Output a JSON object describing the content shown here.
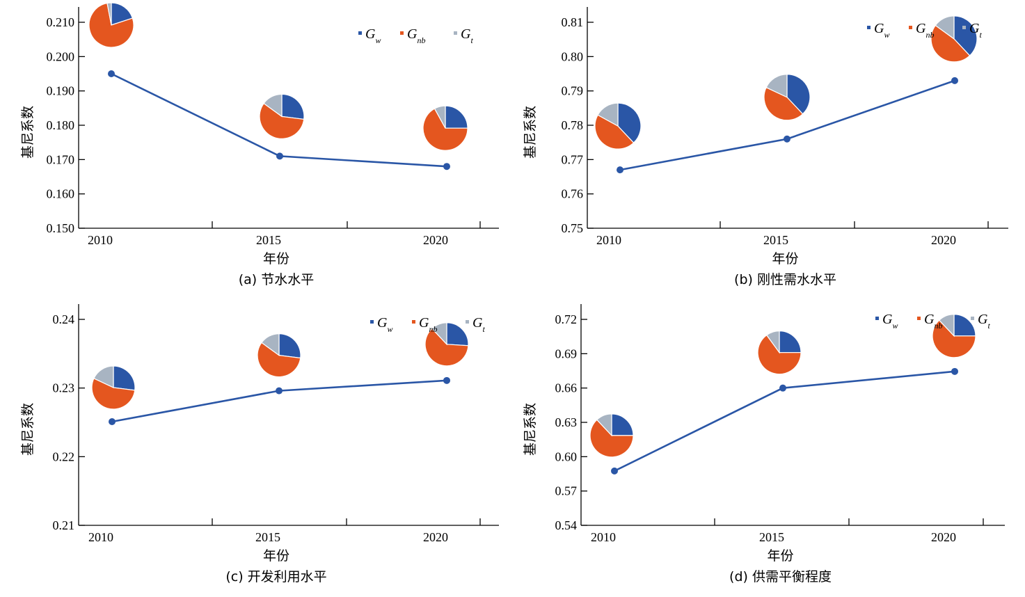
{
  "colors": {
    "Gw": "#2a56a6",
    "Gnb": "#e4561f",
    "Gt": "#a8b4c2",
    "line": "#2a56a6",
    "axis": "#000000"
  },
  "legend": [
    {
      "key": "Gw",
      "base": "G",
      "sub": "w"
    },
    {
      "key": "Gnb",
      "base": "G",
      "sub": "nb"
    },
    {
      "key": "Gt",
      "base": "G",
      "sub": "t"
    }
  ],
  "chart_data": [
    {
      "type": "line",
      "id": "a",
      "title": "(a) 节水水平",
      "xlabel": "年份",
      "ylabel": "基尼系数",
      "categories": [
        "2010",
        "2015",
        "2020"
      ],
      "yticks": [
        "0.150",
        "0.160",
        "0.170",
        "0.180",
        "0.190",
        "0.200",
        "0.210"
      ],
      "ylim": [
        0.15,
        0.21
      ],
      "series": [
        {
          "name": "基尼系数",
          "values": [
            0.195,
            0.171,
            0.168
          ]
        }
      ],
      "pies": [
        {
          "year": "2010",
          "Gw": 20,
          "Gnb": 77,
          "Gt": 3
        },
        {
          "year": "2015",
          "Gw": 27,
          "Gnb": 58,
          "Gt": 15
        },
        {
          "year": "2020",
          "Gw": 25,
          "Gnb": 67,
          "Gt": 8
        }
      ]
    },
    {
      "type": "line",
      "id": "b",
      "title": "(b) 刚性需水水平",
      "xlabel": "年份",
      "ylabel": "基尼系数",
      "categories": [
        "2010",
        "2015",
        "2020"
      ],
      "yticks": [
        "0.75",
        "0.76",
        "0.77",
        "0.78",
        "0.79",
        "0.80",
        "0.81"
      ],
      "ylim": [
        0.75,
        0.81
      ],
      "series": [
        {
          "name": "基尼系数",
          "values": [
            0.767,
            0.776,
            0.793
          ]
        }
      ],
      "pies": [
        {
          "year": "2010",
          "Gw": 38,
          "Gnb": 45,
          "Gt": 17
        },
        {
          "year": "2015",
          "Gw": 38,
          "Gnb": 44,
          "Gt": 18
        },
        {
          "year": "2020",
          "Gw": 38,
          "Gnb": 47,
          "Gt": 15
        }
      ]
    },
    {
      "type": "line",
      "id": "c",
      "title": "(c) 开发利用水平",
      "xlabel": "年份",
      "ylabel": "基尼系数",
      "categories": [
        "2010",
        "2015",
        "2020"
      ],
      "yticks": [
        "0.21",
        "0.22",
        "0.23",
        "0.24"
      ],
      "ylim": [
        0.21,
        0.2425
      ],
      "series": [
        {
          "name": "基尼系数",
          "values": [
            0.2251,
            0.2296,
            0.2311
          ]
        }
      ],
      "pies": [
        {
          "year": "2010",
          "Gw": 27,
          "Gnb": 55,
          "Gt": 18
        },
        {
          "year": "2015",
          "Gw": 27,
          "Gnb": 58,
          "Gt": 15
        },
        {
          "year": "2020",
          "Gw": 26,
          "Gnb": 62,
          "Gt": 12
        }
      ]
    },
    {
      "type": "line",
      "id": "d",
      "title": "(d) 供需平衡程度",
      "xlabel": "年份",
      "ylabel": "基尼系数",
      "categories": [
        "2010",
        "2015",
        "2020"
      ],
      "yticks": [
        "0.54",
        "0.57",
        "0.60",
        "0.63",
        "0.66",
        "0.69",
        "0.72"
      ],
      "ylim": [
        0.54,
        0.735
      ],
      "series": [
        {
          "name": "基尼系数",
          "values": [
            0.5875,
            0.66,
            0.6745
          ]
        }
      ],
      "pies": [
        {
          "year": "2010",
          "Gw": 25,
          "Gnb": 63,
          "Gt": 12
        },
        {
          "year": "2015",
          "Gw": 25,
          "Gnb": 65,
          "Gt": 10
        },
        {
          "year": "2020",
          "Gw": 25,
          "Gnb": 63,
          "Gt": 12
        }
      ]
    }
  ]
}
